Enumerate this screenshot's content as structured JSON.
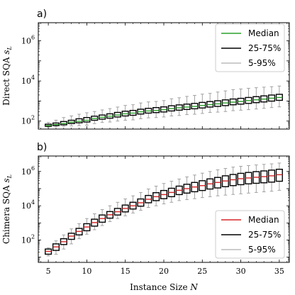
{
  "chart_data": [
    {
      "type": "box",
      "panel_label": "a)",
      "ylabel": "Direct SQA $s_L$",
      "xlabel": "",
      "y_scale": "log",
      "ylim": [
        40,
        8000000
      ],
      "xlim": [
        3.7,
        36.3
      ],
      "xticks": [
        5,
        10,
        15,
        20,
        25,
        30,
        35
      ],
      "yticks": [
        100,
        10000,
        1000000
      ],
      "ytick_labels": [
        "10^2",
        "10^4",
        "10^6"
      ],
      "median_color": "#2ca02c",
      "legend_position": "top-right",
      "legend": [
        "Median",
        "25-75%",
        "5-95%"
      ],
      "x": [
        5,
        6,
        7,
        8,
        9,
        10,
        11,
        12,
        13,
        14,
        15,
        16,
        17,
        18,
        19,
        20,
        21,
        22,
        23,
        24,
        25,
        26,
        27,
        28,
        29,
        30,
        31,
        32,
        33,
        34,
        35
      ],
      "median": [
        60,
        67,
        75,
        88,
        98,
        110,
        135,
        155,
        175,
        200,
        230,
        250,
        290,
        320,
        340,
        370,
        420,
        460,
        500,
        540,
        600,
        660,
        720,
        800,
        880,
        950,
        1050,
        1150,
        1250,
        1380,
        1500
      ],
      "q1": [
        55,
        60,
        65,
        75,
        82,
        90,
        110,
        125,
        140,
        160,
        180,
        195,
        225,
        250,
        265,
        285,
        320,
        350,
        380,
        410,
        450,
        500,
        540,
        590,
        650,
        700,
        760,
        830,
        900,
        990,
        1080
      ],
      "q3": [
        70,
        80,
        95,
        110,
        130,
        150,
        175,
        200,
        230,
        270,
        310,
        340,
        390,
        430,
        470,
        510,
        580,
        640,
        700,
        760,
        850,
        940,
        1030,
        1140,
        1260,
        1360,
        1500,
        1650,
        1800,
        1980,
        2150
      ],
      "p5": [
        50,
        52,
        55,
        58,
        60,
        63,
        75,
        85,
        90,
        100,
        110,
        115,
        130,
        145,
        150,
        160,
        180,
        190,
        210,
        220,
        240,
        270,
        280,
        300,
        330,
        350,
        370,
        400,
        430,
        470,
        510
      ],
      "p95": [
        85,
        110,
        150,
        180,
        220,
        260,
        300,
        360,
        420,
        500,
        600,
        650,
        800,
        900,
        950,
        1050,
        1300,
        1450,
        1700,
        1900,
        2200,
        2400,
        2800,
        3200,
        3700,
        4000,
        4300,
        4600,
        4900,
        5200,
        5600
      ]
    },
    {
      "type": "box",
      "panel_label": "b)",
      "ylabel": "Chimera SQA $s_L$",
      "xlabel": "Instance Size $N$",
      "y_scale": "log",
      "ylim": [
        5,
        8000000
      ],
      "xlim": [
        3.7,
        36.3
      ],
      "xticks": [
        5,
        10,
        15,
        20,
        25,
        30,
        35
      ],
      "xtick_labels": [
        "5",
        "10",
        "15",
        "20",
        "25",
        "30",
        "35"
      ],
      "yticks": [
        100,
        10000,
        1000000
      ],
      "ytick_labels": [
        "10^2",
        "10^4",
        "10^6"
      ],
      "median_color": "#d62728",
      "legend_position": "bottom-right",
      "legend": [
        "Median",
        "25-75%",
        "5-95%"
      ],
      "x": [
        5,
        6,
        7,
        8,
        9,
        10,
        11,
        12,
        13,
        14,
        15,
        16,
        17,
        18,
        19,
        20,
        21,
        22,
        23,
        24,
        25,
        26,
        27,
        28,
        29,
        30,
        31,
        32,
        33,
        34,
        35
      ],
      "median": [
        22,
        40,
        80,
        170,
        320,
        580,
        1050,
        1800,
        3000,
        4500,
        7000,
        10000,
        15000,
        24000,
        34000,
        45000,
        60000,
        80000,
        100000,
        125000,
        150000,
        190000,
        230000,
        280000,
        330000,
        380000,
        420000,
        460000,
        500000,
        560000,
        650000
      ],
      "q1": [
        15,
        25,
        55,
        110,
        200,
        350,
        650,
        1100,
        1900,
        2900,
        4400,
        6500,
        9500,
        15000,
        20000,
        26000,
        34000,
        45000,
        55000,
        66000,
        78000,
        95000,
        110000,
        130000,
        150000,
        170000,
        190000,
        205000,
        220000,
        240000,
        270000
      ],
      "q3": [
        30,
        60,
        120,
        250,
        480,
        900,
        1650,
        2900,
        4600,
        7000,
        11000,
        16000,
        25000,
        40000,
        58000,
        78000,
        105000,
        140000,
        180000,
        230000,
        290000,
        370000,
        450000,
        560000,
        670000,
        780000,
        880000,
        980000,
        1080000,
        1200000,
        1350000
      ],
      "p5": [
        12,
        15,
        30,
        60,
        120,
        220,
        400,
        700,
        1200,
        1800,
        2600,
        3800,
        5500,
        8000,
        10000,
        13000,
        16000,
        20000,
        23000,
        26000,
        30000,
        34000,
        38000,
        42000,
        46000,
        50000,
        55000,
        60000,
        65000,
        70000,
        80000
      ],
      "p95": [
        35,
        90,
        200,
        450,
        900,
        1800,
        3400,
        6000,
        10000,
        16000,
        25000,
        38000,
        60000,
        95000,
        140000,
        200000,
        270000,
        360000,
        480000,
        620000,
        800000,
        1000000,
        1250000,
        1500000,
        1800000,
        2000000,
        2200000,
        2400000,
        2600000,
        2800000,
        3100000
      ]
    }
  ],
  "legend_colors": {
    "iqr": "#000000",
    "whisker": "#999999"
  }
}
